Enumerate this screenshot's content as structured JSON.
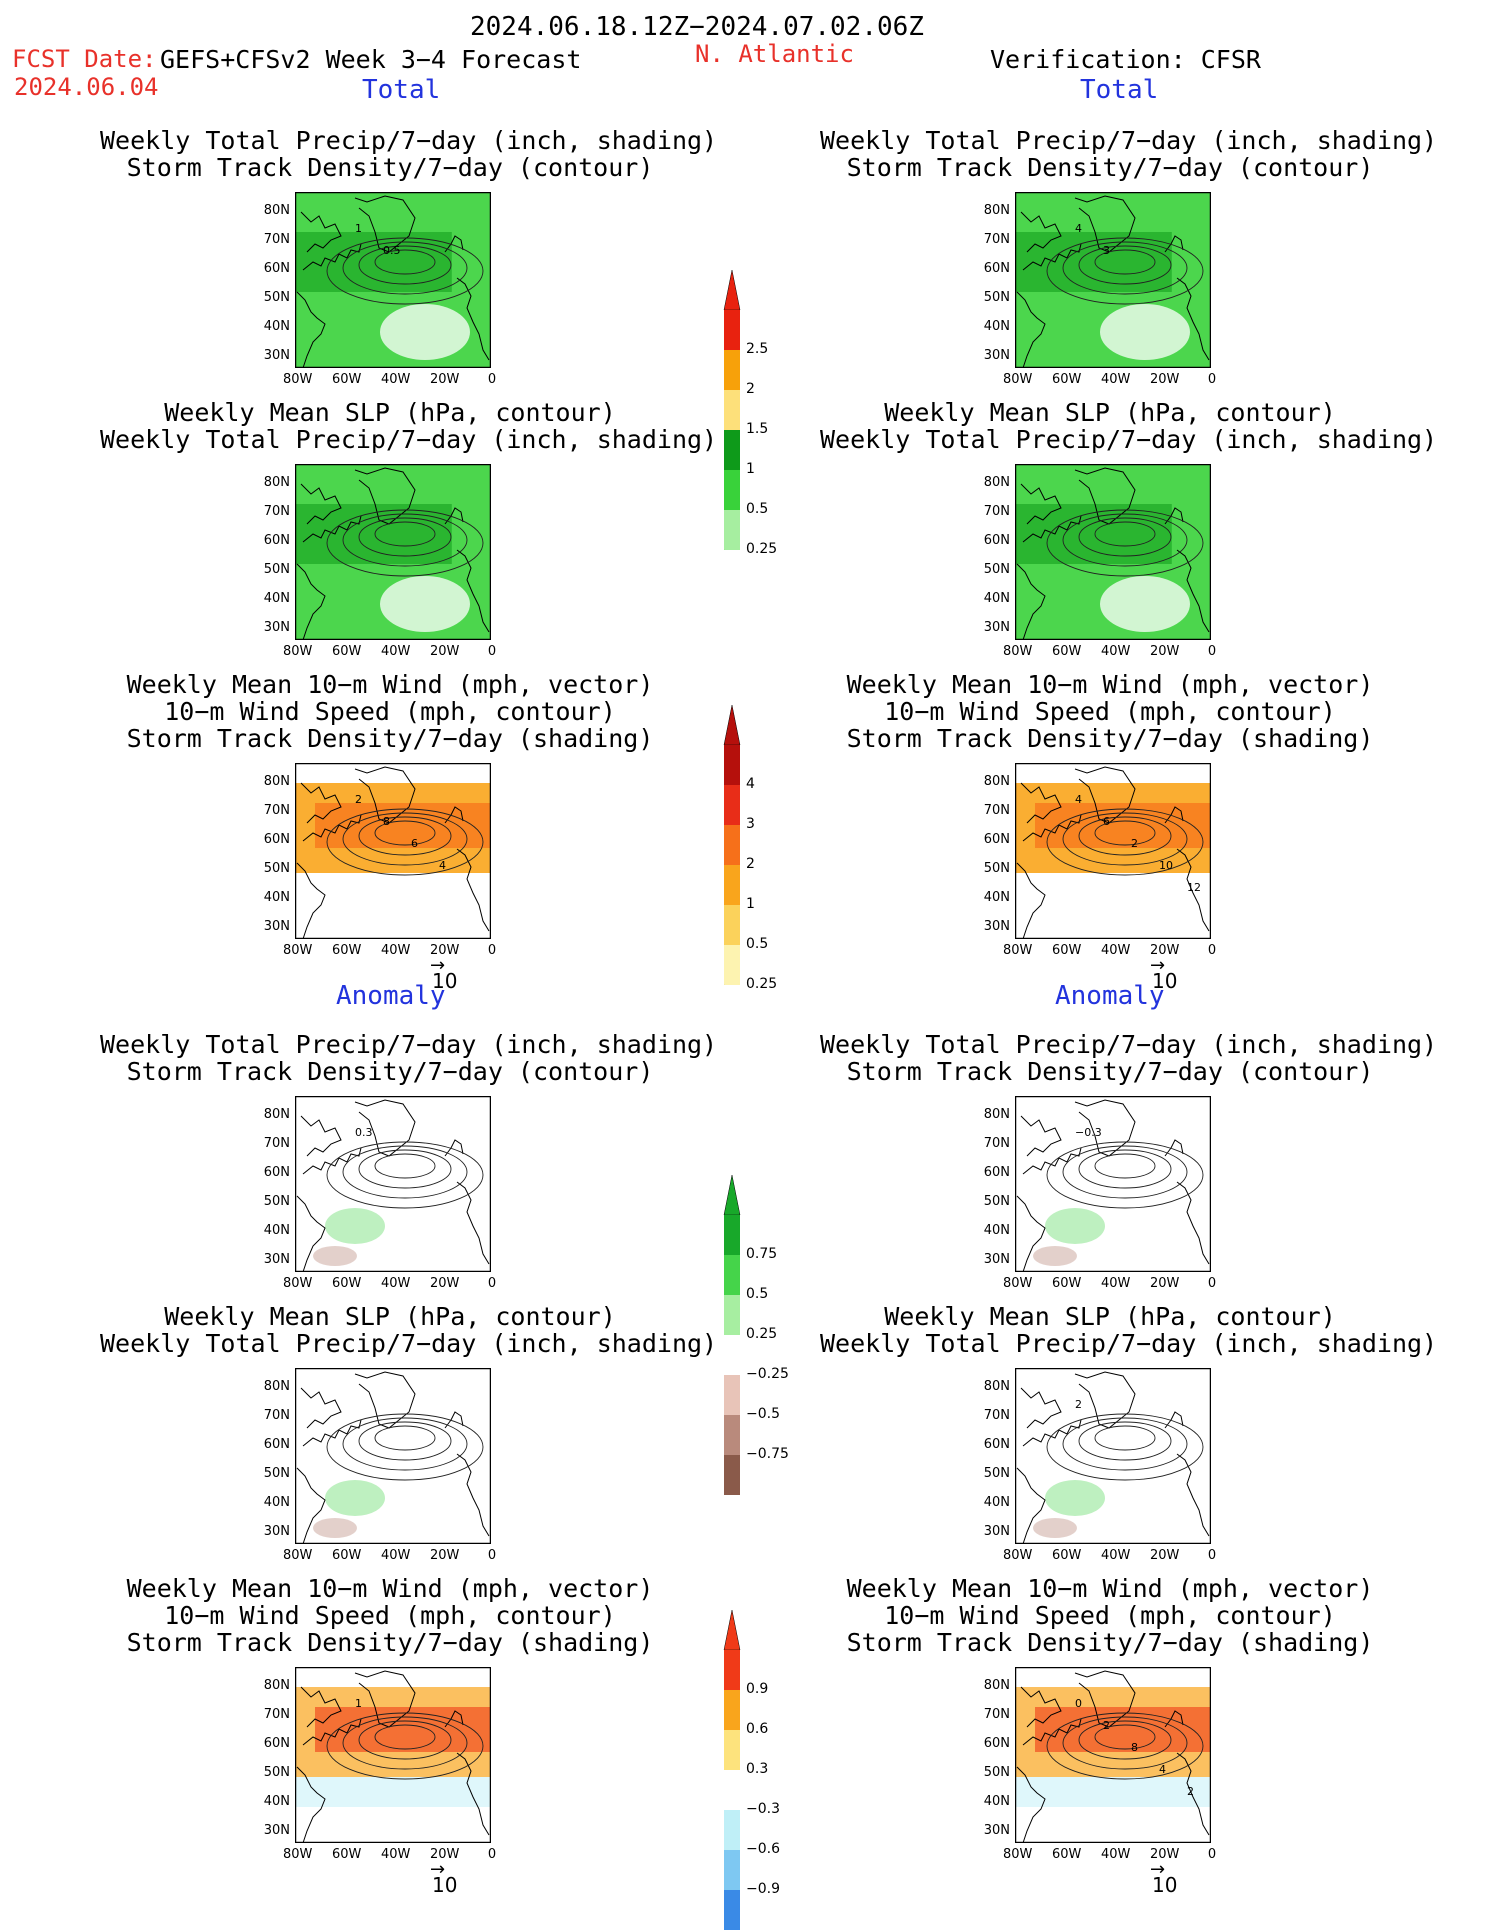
{
  "header": {
    "date_range": "2024.06.18.12Z−2024.07.02.06Z",
    "fcst_label": "FCST Date:",
    "model": "GEFS+CFSv2 Week 3−4 Forecast",
    "fcst_date": "2024.06.04",
    "region": "N. Atlantic",
    "verification": "Verification: CFSR",
    "section_total": "Total",
    "section_anomaly": "Anomaly"
  },
  "titles": {
    "precip_storm": [
      "Weekly Total Precip/7−day (inch, shading)",
      "Storm Track Density/7−day (contour)"
    ],
    "slp_precip": [
      "Weekly Mean SLP (hPa, contour)",
      "Weekly Total Precip/7−day (inch, shading)"
    ],
    "wind_storm": [
      "Weekly Mean 10−m Wind (mph, vector)",
      "10−m Wind Speed (mph, contour)",
      "Storm Track Density/7−day (shading)"
    ]
  },
  "axes": {
    "lat_ticks": [
      "80N",
      "70N",
      "60N",
      "50N",
      "40N",
      "30N"
    ],
    "lon_ticks": [
      "80W",
      "60W",
      "40W",
      "20W",
      "0"
    ],
    "vector_ref": "10"
  },
  "colorbars": [
    {
      "name": "precip_total",
      "labels": [
        "2.5",
        "2",
        "1.5",
        "1",
        "0.5",
        "0.25"
      ],
      "colors": [
        "#e8220f",
        "#f7a10a",
        "#fde07a",
        "#0e9a1a",
        "#39d23a",
        "#a6eea0"
      ],
      "top_arrow": "#e8220f",
      "bottom_arrow": "none"
    },
    {
      "name": "storm_total",
      "labels": [
        "4",
        "3",
        "2",
        "1",
        "0.5",
        "0.25"
      ],
      "colors": [
        "#b5100c",
        "#e82d18",
        "#f6701a",
        "#f9a51c",
        "#fbd25b",
        "#fdf3b0"
      ],
      "top_arrow": "#b5100c",
      "bottom_arrow": "none"
    },
    {
      "name": "precip_anom",
      "labels": [
        "0.75",
        "0.5",
        "0.25",
        "−0.25",
        "−0.5",
        "−0.75"
      ],
      "colors": [
        "#18a82a",
        "#45d44a",
        "#a7eea1",
        "#ffffff",
        "#e8c4b8",
        "#b98a7c",
        "#8a5a4a"
      ],
      "top_arrow": "#18a82a",
      "bottom_arrow": "#6b3a2c"
    },
    {
      "name": "storm_anom",
      "labels": [
        "0.9",
        "0.6",
        "0.3",
        "−0.3",
        "−0.6",
        "−0.9"
      ],
      "colors": [
        "#f03a18",
        "#f9a51c",
        "#fde37d",
        "#ffffff",
        "#bfeff7",
        "#7ec8f2",
        "#3a8ae6"
      ],
      "top_arrow": "#f03a18",
      "bottom_arrow": "#1a5fd6"
    }
  ],
  "panels": [
    {
      "id": "fcst-total-precip-storm",
      "kind": "precip",
      "contour_labels": [
        "1",
        "0.5"
      ]
    },
    {
      "id": "ver-total-precip-storm",
      "kind": "precip",
      "contour_labels": [
        "4",
        "3"
      ]
    },
    {
      "id": "fcst-total-slp-precip",
      "kind": "slp",
      "contour_labels": []
    },
    {
      "id": "ver-total-slp-precip",
      "kind": "slp",
      "contour_labels": []
    },
    {
      "id": "fcst-total-wind-storm",
      "kind": "storm",
      "contour_labels": [
        "2",
        "8",
        "6",
        "4"
      ]
    },
    {
      "id": "ver-total-wind-storm",
      "kind": "storm",
      "contour_labels": [
        "4",
        "6",
        "2",
        "10",
        "12"
      ]
    },
    {
      "id": "fcst-anom-precip-storm",
      "kind": "anom-precip",
      "contour_labels": [
        "0.3"
      ]
    },
    {
      "id": "ver-anom-precip-storm",
      "kind": "anom-precip",
      "contour_labels": [
        "−0.3"
      ]
    },
    {
      "id": "fcst-anom-slp-precip",
      "kind": "anom-slp",
      "contour_labels": []
    },
    {
      "id": "ver-anom-slp-precip",
      "kind": "anom-slp",
      "contour_labels": [
        "2"
      ]
    },
    {
      "id": "fcst-anom-wind-storm",
      "kind": "anom-storm",
      "contour_labels": [
        "1"
      ]
    },
    {
      "id": "ver-anom-wind-storm",
      "kind": "anom-storm",
      "contour_labels": [
        "0",
        "2",
        "8",
        "4",
        "2"
      ]
    }
  ],
  "chart_data": [
    {
      "type": "heatmap",
      "title": "Weekly Total Precip/7−day (inch, shading)",
      "region": "N. Atlantic",
      "lat_range": [
        "30N",
        "80N"
      ],
      "lon_range": [
        "80W",
        "0"
      ]
    },
    {
      "type": "heatmap",
      "title": "Storm Track Density/7−day (shading)",
      "region": "N. Atlantic",
      "lat_range": [
        "30N",
        "80N"
      ],
      "lon_range": [
        "80W",
        "0"
      ]
    }
  ]
}
